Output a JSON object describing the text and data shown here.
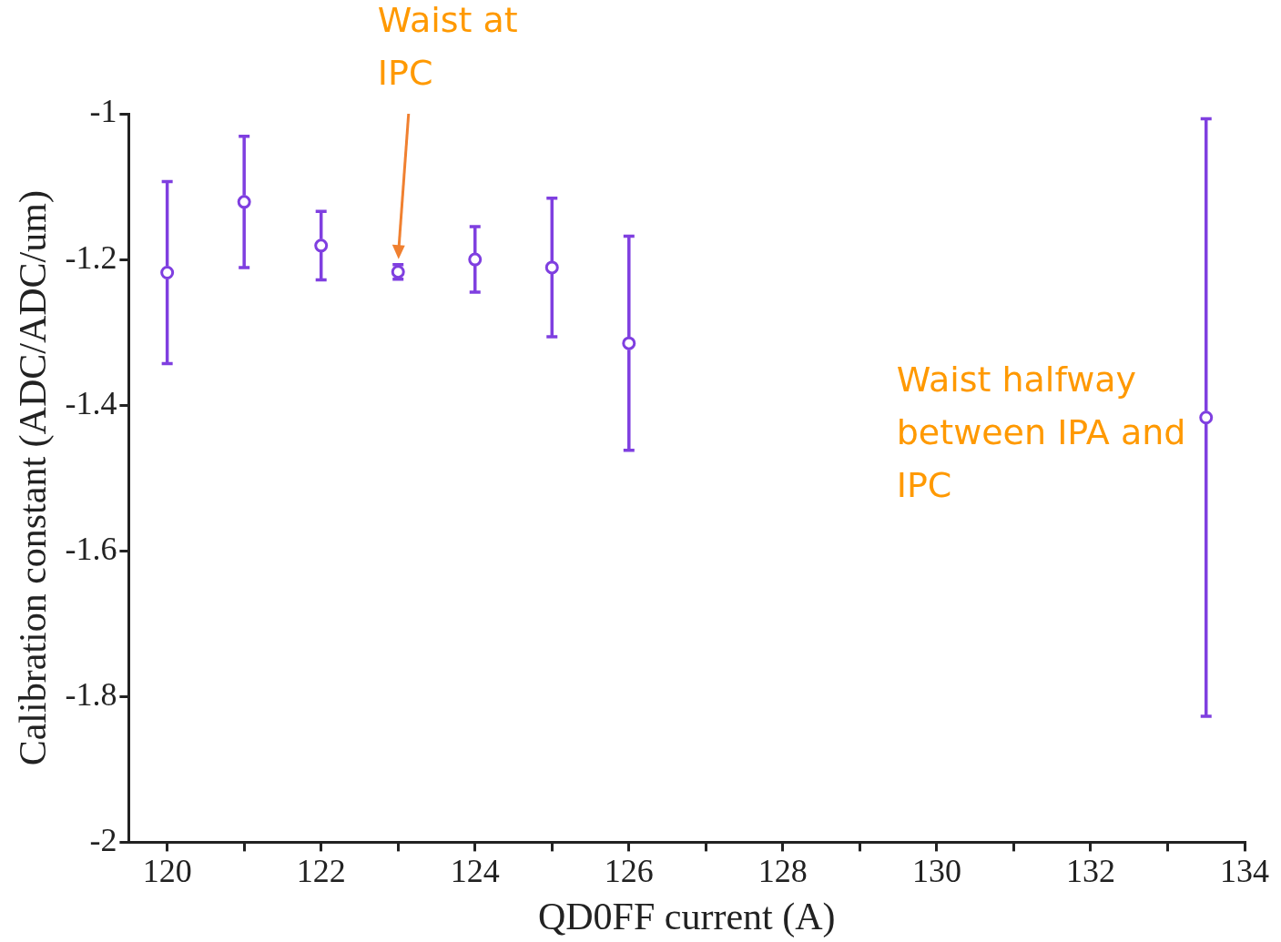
{
  "chart_data": {
    "type": "scatter",
    "xlabel": "QD0FF current (A)",
    "ylabel": "Calibration constant (ADC/ADC/um)",
    "x": [
      120,
      121,
      122,
      123,
      124,
      125,
      126,
      133.5
    ],
    "series": [
      {
        "color": "#7f3fe0",
        "values": [
          -1.218,
          -1.121,
          -1.181,
          -1.217,
          -1.2,
          -1.211,
          -1.315,
          -1.417
        ],
        "errors": [
          0.125,
          0.09,
          0.047,
          0.01,
          0.045,
          0.095,
          0.147,
          0.41
        ]
      }
    ],
    "xlim": [
      119.5,
      134
    ],
    "ylim": [
      -2,
      -1
    ],
    "xticks": [
      120,
      {
        "value": 121,
        "label": null
      },
      122,
      {
        "value": 123,
        "label": null
      },
      124,
      {
        "value": 125,
        "label": null
      },
      126,
      {
        "value": 127,
        "label": null
      },
      128,
      {
        "value": 129,
        "label": null
      },
      130,
      {
        "value": 131,
        "label": null
      },
      132,
      {
        "value": 133,
        "label": null
      },
      134
    ],
    "yticks": [
      -2,
      -1.8,
      -1.6,
      -1.4,
      -1.2,
      -1
    ],
    "marker": "circle",
    "grid": false,
    "legend": false,
    "annotations": [
      "Waist at IPC",
      {
        "text": "Waist halfway between IPA and IPC",
        "x": 133.5,
        "y": -1.417
      }
    ]
  }
}
